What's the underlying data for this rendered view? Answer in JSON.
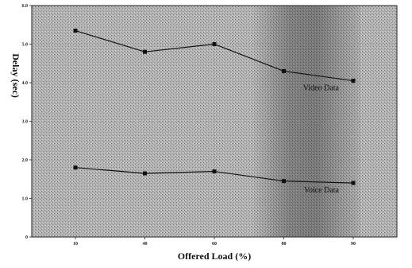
{
  "chart_data": {
    "type": "line",
    "title": "",
    "xlabel": "Offered Load (%)",
    "ylabel": "Delay (sec)",
    "categories": [
      "10",
      "40",
      "60",
      "80",
      "90"
    ],
    "y_ticks": [
      "0",
      "1.0",
      "2.0",
      "3.0",
      "4.0",
      "5.0",
      "6.0"
    ],
    "ylim": [
      0,
      6.0
    ],
    "grid": true,
    "legend": "none",
    "series": [
      {
        "name": "Video Data",
        "values": [
          5.35,
          4.8,
          5.0,
          4.3,
          4.05
        ]
      },
      {
        "name": "Voice Data",
        "values": [
          1.8,
          1.65,
          1.7,
          1.45,
          1.4
        ]
      }
    ],
    "annotations": [
      {
        "text": "Video Data",
        "series": "Video Data"
      },
      {
        "text": "Voice Data",
        "series": "Voice Data"
      }
    ],
    "colors": {
      "plot_bg": "#a8a8a8",
      "line": "#111111",
      "frame": "#222222"
    }
  }
}
